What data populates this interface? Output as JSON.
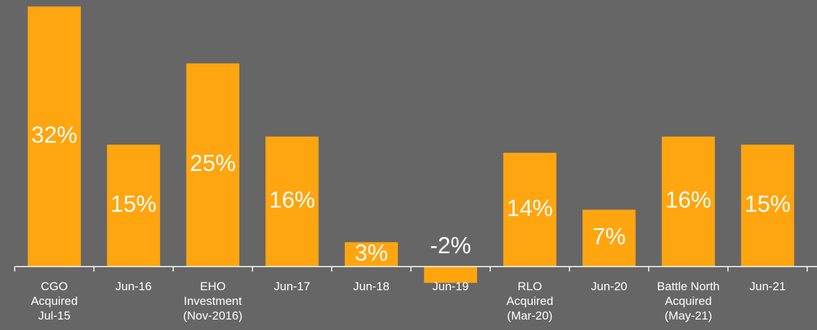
{
  "chart_data": {
    "type": "bar",
    "categories": [
      "CGO\nAcquired\nJul-15",
      "Jun-16",
      "EHO\nInvestment\n(Nov-2016)",
      "Jun-17",
      "Jun-18",
      "Jun-19",
      "RLO\nAcquired\n(Mar-20)",
      "Jun-20",
      "Battle North\nAcquired\n(May-21)",
      "Jun-21"
    ],
    "values": [
      32,
      15,
      25,
      16,
      3,
      -2,
      14,
      7,
      16,
      15
    ],
    "value_labels": [
      "32%",
      "15%",
      "25%",
      "16%",
      "3%",
      "-2%",
      "14%",
      "7%",
      "16%",
      "15%"
    ],
    "color": "#ffa50f",
    "ylim": [
      -7.8,
      32.8
    ]
  }
}
